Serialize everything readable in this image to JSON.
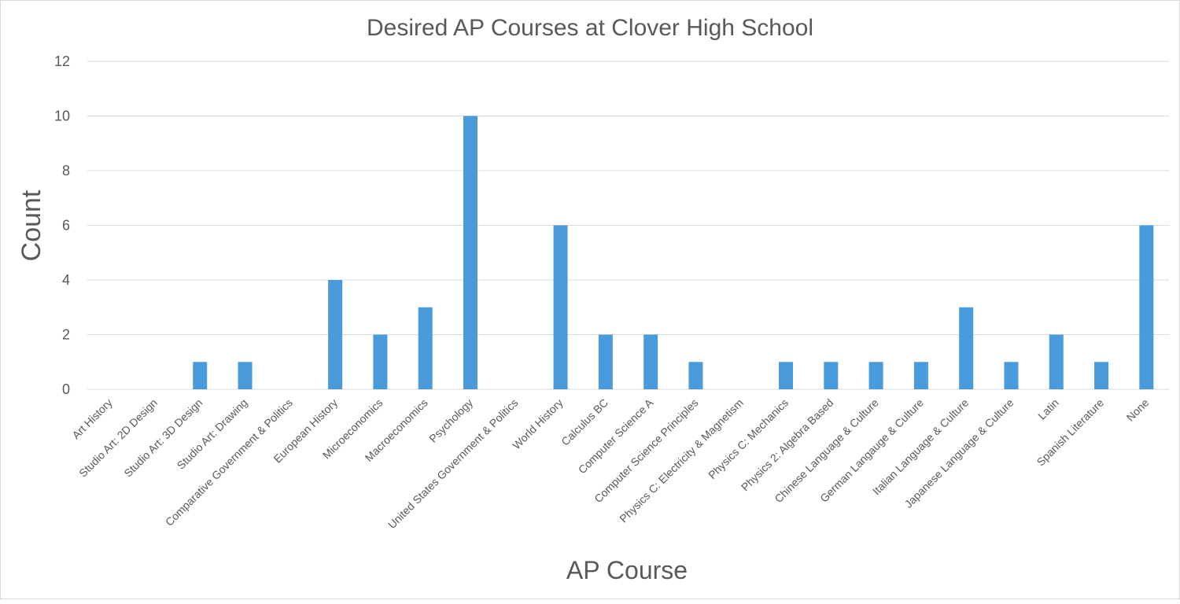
{
  "chart_data": {
    "type": "bar",
    "title": "Desired AP Courses at Clover High School",
    "xlabel": "AP Course",
    "ylabel": "Count",
    "ylim": [
      0,
      12
    ],
    "yticks": [
      "0",
      "2",
      "4",
      "6",
      "8",
      "10",
      "12"
    ],
    "grid": true,
    "legend": "none",
    "bar_color": "#4a9bdc",
    "categories": [
      "Art History",
      "Studio Art: 2D Design",
      "Studio Art: 3D Design",
      "Studio Art: Drawing",
      "Comparative Government & Politics",
      "European History",
      "Microeconomics",
      "Macroeconomics",
      "Psychology",
      "United States Government & Politics",
      "World History",
      "Calculus BC",
      "Computer Science A",
      "Computer Science Principles",
      "Physics C: Electricity  & Magnetism",
      "Physics C: Mechanics",
      "Physics 2: Algebra Based",
      "Chinese Language & Culture",
      "German Langauge & Culture",
      "Italian Language & Culture",
      "Japanese Language & Culture",
      "Latin",
      "Spanish Literature",
      "None"
    ],
    "values": [
      0,
      0,
      1,
      1,
      0,
      4,
      2,
      3,
      10,
      0,
      6,
      2,
      2,
      1,
      0,
      1,
      1,
      1,
      1,
      3,
      1,
      2,
      1,
      6
    ]
  }
}
